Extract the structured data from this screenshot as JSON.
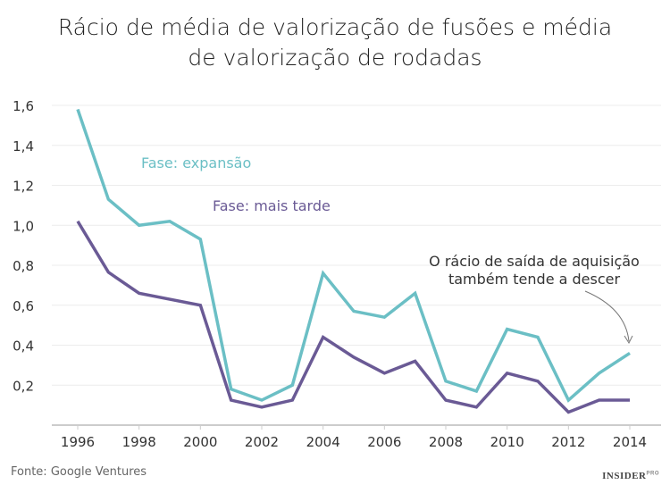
{
  "chart_data": {
    "type": "line",
    "title": "Rácio de média de valorização de fusões e média de valorização de rodadas",
    "title_lines": [
      "Rácio de média de valorização de fusões e média",
      "de valorização de rodadas"
    ],
    "xlabel": "",
    "ylabel": "",
    "x": [
      1996,
      1997,
      1998,
      1999,
      2000,
      2001,
      2002,
      2003,
      2004,
      2005,
      2006,
      2007,
      2008,
      2009,
      2010,
      2011,
      2012,
      2013,
      2014
    ],
    "x_ticks": [
      "1996",
      "1998",
      "2000",
      "2002",
      "2004",
      "2006",
      "2008",
      "2010",
      "2012",
      "2014"
    ],
    "y_ticks": [
      "0,2",
      "0,4",
      "0,6",
      "0,8",
      "1,0",
      "1,2",
      "1,4",
      "1,6"
    ],
    "ylim": [
      0,
      1.6
    ],
    "grid": "horizontal",
    "series": [
      {
        "name": "Fase: expansão",
        "color": "#6bbfc5",
        "values": [
          1.58,
          1.13,
          1.0,
          1.02,
          0.93,
          0.18,
          0.125,
          0.2,
          0.76,
          0.57,
          0.54,
          0.66,
          0.22,
          0.17,
          0.48,
          0.44,
          0.125,
          0.26,
          0.36
        ]
      },
      {
        "name": "Fase: mais tarde",
        "color": "#6a5a95",
        "values": [
          1.02,
          0.765,
          0.66,
          0.63,
          0.6,
          0.125,
          0.09,
          0.125,
          0.44,
          0.34,
          0.26,
          0.32,
          0.125,
          0.09,
          0.26,
          0.22,
          0.065,
          0.125,
          0.125
        ]
      }
    ],
    "annotation": [
      "O rácio de saída de aquisição",
      "também tende a descer"
    ]
  },
  "source": "Fonte: Google Ventures",
  "logo": {
    "text": "INSIDER",
    "sup": "PRO"
  }
}
